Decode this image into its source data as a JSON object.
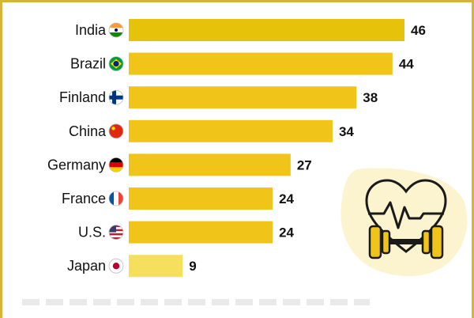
{
  "chart_data": {
    "type": "bar",
    "orientation": "horizontal",
    "categories": [
      "India",
      "Brazil",
      "Finland",
      "China",
      "Germany",
      "France",
      "U.S.",
      "Japan"
    ],
    "values": [
      46,
      44,
      38,
      34,
      27,
      24,
      24,
      9
    ],
    "xlim": [
      0,
      50
    ],
    "grid": false,
    "colors": {
      "bar": "#f0c419",
      "bar_highlight": "#e6c20a",
      "bar_light": "#f6df5c",
      "value_text": "#111111",
      "frame": "#d9b23a"
    },
    "flags": {
      "India": [
        "#ff9933",
        "#ffffff",
        "#138808"
      ],
      "Brazil": [
        "#009c3b",
        "#ffdf00",
        "#002776"
      ],
      "Finland": [
        "#ffffff",
        "#003580"
      ],
      "China": [
        "#de2910",
        "#ffde00"
      ],
      "Germany": [
        "#000000",
        "#dd0000",
        "#ffce00"
      ],
      "France": [
        "#0055a4",
        "#ffffff",
        "#ef4135"
      ],
      "U.S.": [
        "#b22234",
        "#ffffff",
        "#3c3b6e"
      ],
      "Japan": [
        "#ffffff",
        "#bc002d"
      ]
    }
  },
  "decoration": {
    "icon": "heart-dumbbell-icon",
    "icon_color": "#1a1a1a",
    "icon_accent": "#f0c419",
    "blob_color": "#fbf2c7"
  }
}
